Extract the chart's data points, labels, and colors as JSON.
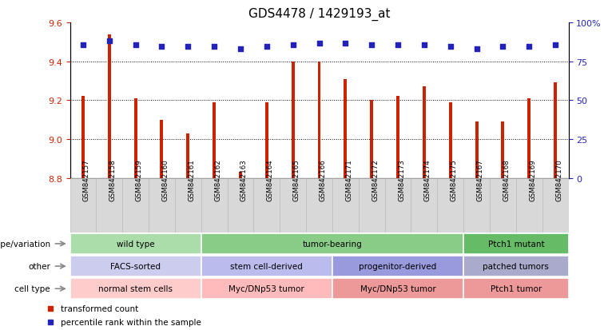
{
  "title": "GDS4478 / 1429193_at",
  "samples": [
    "GSM842157",
    "GSM842158",
    "GSM842159",
    "GSM842160",
    "GSM842161",
    "GSM842162",
    "GSM842163",
    "GSM842164",
    "GSM842165",
    "GSM842166",
    "GSM842171",
    "GSM842172",
    "GSM842173",
    "GSM842174",
    "GSM842175",
    "GSM842167",
    "GSM842168",
    "GSM842169",
    "GSM842170"
  ],
  "bar_values": [
    9.22,
    9.54,
    9.21,
    9.1,
    9.03,
    9.19,
    8.83,
    9.19,
    9.4,
    9.4,
    9.31,
    9.2,
    9.22,
    9.27,
    9.19,
    9.09,
    9.09,
    9.21,
    9.29
  ],
  "dot_values": [
    9.485,
    9.505,
    9.485,
    9.475,
    9.475,
    9.475,
    9.465,
    9.475,
    9.485,
    9.495,
    9.495,
    9.485,
    9.485,
    9.485,
    9.475,
    9.465,
    9.475,
    9.475,
    9.485
  ],
  "ylim": [
    8.8,
    9.6
  ],
  "yticks": [
    8.8,
    9.0,
    9.2,
    9.4,
    9.6
  ],
  "right_yticks_labels": [
    "0",
    "25",
    "50",
    "75",
    "100%"
  ],
  "right_ytick_vals": [
    8.8,
    9.0,
    9.2,
    9.4,
    9.6
  ],
  "bar_color": "#cc2200",
  "dot_color": "#2222bb",
  "bar_width": 0.12,
  "annotation_rows": [
    {
      "label": "genotype/variation",
      "segments": [
        {
          "text": "wild type",
          "start": 0,
          "end": 5,
          "color": "#aaddaa"
        },
        {
          "text": "tumor-bearing",
          "start": 5,
          "end": 15,
          "color": "#88cc88"
        },
        {
          "text": "Ptch1 mutant",
          "start": 15,
          "end": 19,
          "color": "#66bb66"
        }
      ]
    },
    {
      "label": "other",
      "segments": [
        {
          "text": "FACS-sorted",
          "start": 0,
          "end": 5,
          "color": "#ccccee"
        },
        {
          "text": "stem cell-derived",
          "start": 5,
          "end": 10,
          "color": "#bbbbee"
        },
        {
          "text": "progenitor-derived",
          "start": 10,
          "end": 15,
          "color": "#9999dd"
        },
        {
          "text": "patched tumors",
          "start": 15,
          "end": 19,
          "color": "#aaaacc"
        }
      ]
    },
    {
      "label": "cell type",
      "segments": [
        {
          "text": "normal stem cells",
          "start": 0,
          "end": 5,
          "color": "#ffcccc"
        },
        {
          "text": "Myc/DNp53 tumor",
          "start": 5,
          "end": 10,
          "color": "#ffbbbb"
        },
        {
          "text": "Myc/DNp53 tumor",
          "start": 10,
          "end": 15,
          "color": "#ee9999"
        },
        {
          "text": "Ptch1 tumor",
          "start": 15,
          "end": 19,
          "color": "#ee9999"
        }
      ]
    }
  ],
  "legend_items": [
    {
      "label": "transformed count",
      "color": "#cc2200"
    },
    {
      "label": "percentile rank within the sample",
      "color": "#2222bb"
    }
  ],
  "xtick_bg": "#d8d8d8",
  "xtick_border": "#bbbbbb"
}
